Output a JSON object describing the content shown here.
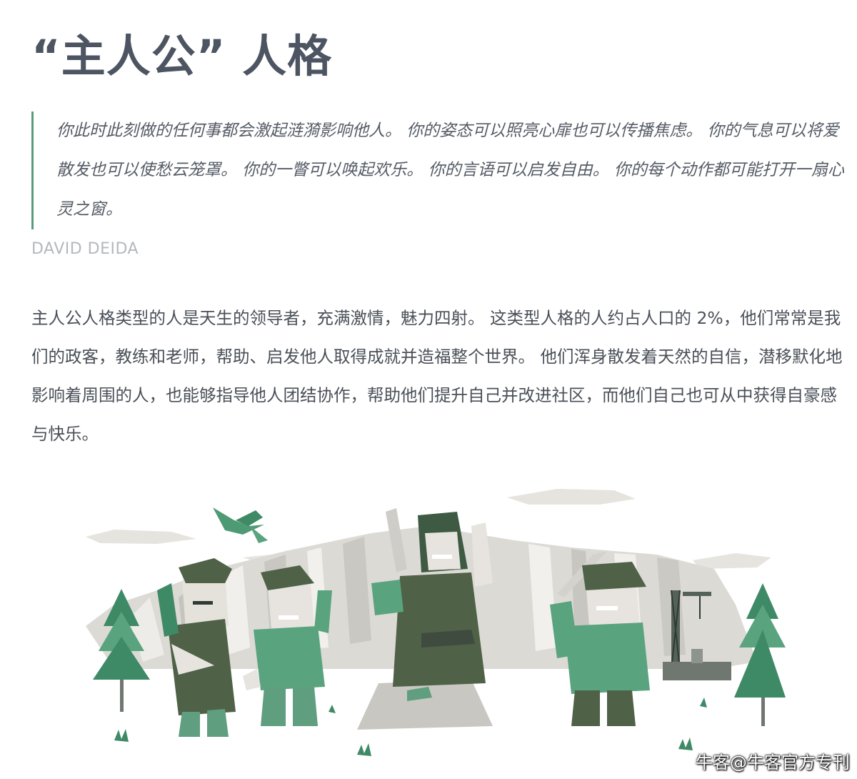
{
  "header": {
    "title": "“主人公” 人格"
  },
  "quote": {
    "text": "你此时此刻做的任何事都会激起涟漪影响他人。 你的姿态可以照亮心扉也可以传播焦虑。 你的气息可以将爱散发也可以使愁云笼罩。 你的一瞥可以唤起欢乐。 你的言语可以启发自由。 你的每个动作都可能打开一扇心灵之窗。",
    "author": "DAVID DEIDA"
  },
  "body": {
    "paragraph": "主人公人格类型的人是天生的领导者，充满激情，魅力四射。 这类型人格的人约占人口的 2%，他们常常是我们的政客，教练和老师，帮助、启发他人取得成就并造福整个世界。 他们浑身散发着天然的自信，潜移默化地影响着周围的人，也能够指导他人团结协作，帮助他们提升自己并改进社区，而他们自己也可从中获得自豪感与快乐。"
  },
  "watermark": {
    "text": "牛客@牛客官方专刊"
  },
  "colors": {
    "accent_green": "#5a9c78",
    "dark_green": "#4f6147",
    "mid_green": "#5f9e7f",
    "skin": "#e7e4df",
    "rock": "#d6d5d1"
  }
}
